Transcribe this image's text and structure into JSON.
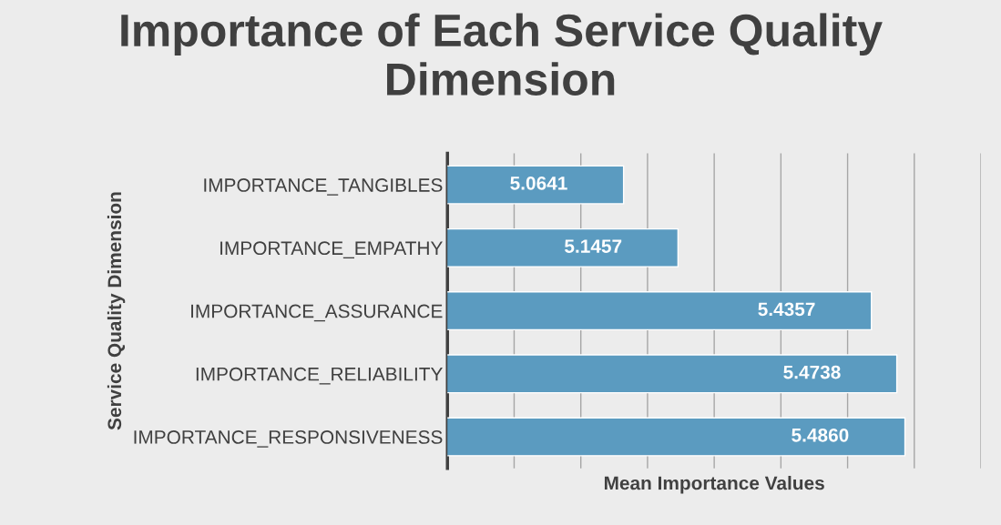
{
  "chart_data": {
    "type": "bar",
    "orientation": "horizontal",
    "title": "Importance of Each Service Quality Dimension",
    "xlabel": "Mean Importance Values",
    "ylabel": "Service Quality Dimension",
    "categories": [
      "IMPORTANCE_TANGIBLES",
      "IMPORTANCE_EMPATHY",
      "IMPORTANCE_ASSURANCE",
      "IMPORTANCE_RELIABILITY",
      "IMPORTANCE_RESPONSIVENESS"
    ],
    "values": [
      5.0641,
      5.1457,
      5.4357,
      5.4738,
      5.486
    ],
    "value_labels": [
      "5.0641",
      "5.1457",
      "5.4357",
      "5.4738",
      "5.4860"
    ],
    "color": "#5b9bc0",
    "xlim": [
      4.8,
      5.6
    ],
    "xticks": [
      {
        "value": 4.8,
        "label": null
      },
      {
        "value": 4.9,
        "label": null
      },
      {
        "value": 5.0,
        "label": null
      },
      {
        "value": 5.1,
        "label": null
      },
      {
        "value": 5.2,
        "label": null
      },
      {
        "value": 5.3,
        "label": null
      },
      {
        "value": 5.4,
        "label": null
      },
      {
        "value": 5.5,
        "label": null
      },
      {
        "value": 5.6,
        "label": null
      }
    ],
    "tick_labels": "y",
    "grid": "x",
    "legend": false
  }
}
